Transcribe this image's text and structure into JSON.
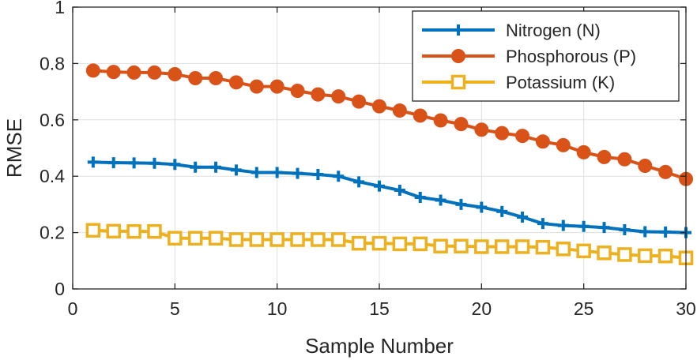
{
  "chart_data": {
    "type": "line",
    "xlabel": "Sample Number",
    "ylabel": "RMSE",
    "xlim": [
      0,
      30
    ],
    "ylim": [
      0,
      1
    ],
    "xticks": [
      0,
      5,
      10,
      15,
      20,
      25,
      30
    ],
    "yticks": [
      0,
      0.2,
      0.4,
      0.6,
      0.8,
      1
    ],
    "ytick_labels": [
      "0",
      "0.2",
      "0.4",
      "0.6",
      "0.8",
      "1"
    ],
    "grid": true,
    "legend_position": "top-right",
    "x": [
      1,
      2,
      3,
      4,
      5,
      6,
      7,
      8,
      9,
      10,
      11,
      12,
      13,
      14,
      15,
      16,
      17,
      18,
      19,
      20,
      21,
      22,
      23,
      24,
      25,
      26,
      27,
      28,
      29,
      30
    ],
    "series": [
      {
        "name": "Nitrogen (N)",
        "color": "#0072BD",
        "marker": "plus",
        "values": [
          0.45,
          0.448,
          0.447,
          0.446,
          0.442,
          0.432,
          0.432,
          0.422,
          0.413,
          0.413,
          0.41,
          0.406,
          0.4,
          0.38,
          0.365,
          0.35,
          0.325,
          0.315,
          0.3,
          0.29,
          0.275,
          0.255,
          0.232,
          0.225,
          0.222,
          0.218,
          0.21,
          0.203,
          0.202,
          0.2
        ]
      },
      {
        "name": "Phosphorous (P)",
        "color": "#D95319",
        "marker": "circle",
        "values": [
          0.775,
          0.77,
          0.768,
          0.768,
          0.762,
          0.748,
          0.748,
          0.733,
          0.718,
          0.718,
          0.703,
          0.69,
          0.683,
          0.665,
          0.648,
          0.633,
          0.615,
          0.598,
          0.585,
          0.565,
          0.553,
          0.543,
          0.523,
          0.51,
          0.485,
          0.468,
          0.46,
          0.437,
          0.415,
          0.39
        ]
      },
      {
        "name": "Potassium (K)",
        "color": "#EDB120",
        "marker": "square",
        "values": [
          0.208,
          0.205,
          0.204,
          0.204,
          0.18,
          0.18,
          0.18,
          0.175,
          0.175,
          0.175,
          0.175,
          0.175,
          0.175,
          0.162,
          0.162,
          0.16,
          0.16,
          0.152,
          0.152,
          0.15,
          0.15,
          0.15,
          0.148,
          0.142,
          0.135,
          0.128,
          0.122,
          0.118,
          0.117,
          0.11
        ]
      }
    ]
  }
}
